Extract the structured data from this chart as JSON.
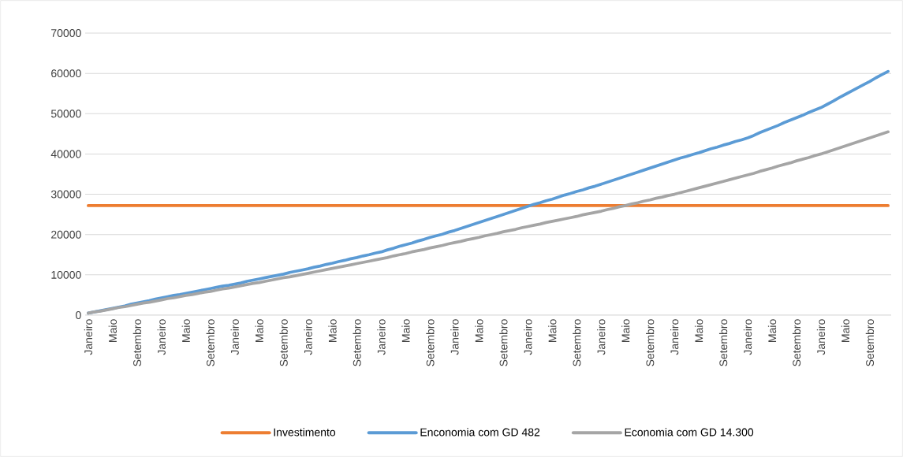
{
  "chart_data": {
    "type": "line",
    "categories": [
      "Janeiro",
      null,
      null,
      null,
      "Maio",
      null,
      null,
      null,
      "Setembro",
      null,
      null,
      null,
      "Janeiro",
      null,
      null,
      null,
      "Maio",
      null,
      null,
      null,
      "Setembro",
      null,
      null,
      null,
      "Janeiro",
      null,
      null,
      null,
      "Maio",
      null,
      null,
      null,
      "Setembro",
      null,
      null,
      null,
      "Janeiro",
      null,
      null,
      null,
      "Maio",
      null,
      null,
      null,
      "Setembro",
      null,
      null,
      null,
      "Janeiro",
      null,
      null,
      null,
      "Maio",
      null,
      null,
      null,
      "Setembro",
      null,
      null,
      null,
      "Janeiro",
      null,
      null,
      null,
      "Maio",
      null,
      null,
      null,
      "Setembro",
      null,
      null,
      null,
      "Janeiro",
      null,
      null,
      null,
      "Maio",
      null,
      null,
      null,
      "Setembro",
      null,
      null,
      null,
      "Janeiro",
      null,
      null,
      null,
      "Maio",
      null,
      null,
      null,
      "Setembro",
      null,
      null,
      null,
      "Janeiro",
      null,
      null,
      null,
      "Maio",
      null,
      null,
      null,
      "Setembro",
      null,
      null,
      null,
      "Janeiro",
      null,
      null,
      null,
      "Maio",
      null,
      null,
      null,
      "Setembro",
      null,
      null,
      null,
      "Janeiro",
      null,
      null,
      null,
      "Maio",
      null,
      null,
      null,
      "Setembro",
      null,
      null,
      null
    ],
    "series": [
      {
        "name": "Investimento",
        "color": "#ed7d31",
        "values": [
          27200,
          27200,
          27200,
          27200,
          27200,
          27200,
          27200,
          27200,
          27200,
          27200,
          27200,
          27200,
          27200,
          27200,
          27200,
          27200,
          27200,
          27200,
          27200,
          27200,
          27200,
          27200,
          27200,
          27200,
          27200,
          27200,
          27200,
          27200,
          27200,
          27200,
          27200,
          27200,
          27200,
          27200,
          27200,
          27200,
          27200,
          27200,
          27200,
          27200,
          27200,
          27200,
          27200,
          27200,
          27200,
          27200,
          27200,
          27200,
          27200,
          27200,
          27200,
          27200,
          27200,
          27200,
          27200,
          27200,
          27200,
          27200,
          27200,
          27200,
          27200,
          27200,
          27200,
          27200,
          27200,
          27200,
          27200,
          27200,
          27200,
          27200,
          27200,
          27200,
          27200,
          27200,
          27200,
          27200,
          27200,
          27200,
          27200,
          27200,
          27200,
          27200,
          27200,
          27200,
          27200,
          27200,
          27200,
          27200,
          27200,
          27200,
          27200,
          27200,
          27200,
          27200,
          27200,
          27200,
          27200,
          27200,
          27200,
          27200,
          27200,
          27200,
          27200,
          27200,
          27200,
          27200,
          27200,
          27200,
          27200,
          27200,
          27200,
          27200,
          27200,
          27200,
          27200,
          27200,
          27200,
          27200,
          27200,
          27200,
          27200,
          27200,
          27200,
          27200,
          27200,
          27200,
          27200,
          27200,
          27200,
          27200,
          27200,
          27200
        ]
      },
      {
        "name": "Enconomia com GD 482",
        "color": "#5b9bd5",
        "values": [
          500,
          800,
          1100,
          1400,
          1700,
          2000,
          2300,
          2700,
          3000,
          3300,
          3600,
          4000,
          4300,
          4600,
          4900,
          5100,
          5400,
          5700,
          6000,
          6300,
          6600,
          6900,
          7200,
          7400,
          7700,
          8000,
          8400,
          8700,
          9000,
          9300,
          9600,
          9900,
          10200,
          10600,
          10900,
          11200,
          11500,
          11900,
          12200,
          12600,
          12900,
          13300,
          13600,
          14000,
          14300,
          14700,
          15000,
          15400,
          15700,
          16200,
          16600,
          17100,
          17500,
          17900,
          18400,
          18800,
          19300,
          19700,
          20100,
          20600,
          21000,
          21500,
          22000,
          22500,
          23000,
          23500,
          24000,
          24500,
          25000,
          25500,
          26000,
          26500,
          27000,
          27500,
          27900,
          28400,
          28800,
          29300,
          29800,
          30200,
          30700,
          31100,
          31600,
          32000,
          32500,
          33000,
          33500,
          34000,
          34500,
          35000,
          35500,
          36000,
          36500,
          37000,
          37500,
          38000,
          38500,
          39000,
          39400,
          39900,
          40300,
          40800,
          41300,
          41700,
          42200,
          42600,
          43100,
          43500,
          44000,
          44600,
          45300,
          45900,
          46500,
          47100,
          47800,
          48400,
          49000,
          49600,
          50300,
          50900,
          51500,
          52300,
          53100,
          54000,
          54800,
          55600,
          56400,
          57200,
          58000,
          58900,
          59700,
          60500
        ]
      },
      {
        "name": "Economia com GD 14.300",
        "color": "#a5a5a5",
        "values": [
          500,
          800,
          1000,
          1300,
          1600,
          1900,
          2100,
          2400,
          2700,
          3000,
          3200,
          3500,
          3800,
          4100,
          4300,
          4600,
          4900,
          5100,
          5400,
          5700,
          5900,
          6200,
          6500,
          6700,
          7000,
          7300,
          7600,
          7900,
          8100,
          8400,
          8700,
          9000,
          9300,
          9500,
          9800,
          10100,
          10400,
          10700,
          11000,
          11300,
          11600,
          11900,
          12200,
          12500,
          12800,
          13100,
          13400,
          13700,
          14000,
          14300,
          14700,
          15000,
          15300,
          15700,
          16000,
          16300,
          16700,
          17000,
          17300,
          17700,
          18000,
          18300,
          18700,
          19000,
          19300,
          19700,
          20000,
          20300,
          20700,
          21000,
          21300,
          21700,
          22000,
          22300,
          22600,
          23000,
          23300,
          23600,
          23900,
          24200,
          24500,
          24900,
          25200,
          25500,
          25800,
          26200,
          26500,
          26900,
          27200,
          27600,
          27900,
          28300,
          28600,
          29000,
          29300,
          29700,
          30000,
          30400,
          30800,
          31200,
          31600,
          32000,
          32400,
          32800,
          33200,
          33600,
          34000,
          34400,
          34800,
          35200,
          35700,
          36100,
          36500,
          37000,
          37400,
          37800,
          38300,
          38700,
          39100,
          39600,
          40000,
          40500,
          41000,
          41500,
          42000,
          42500,
          43000,
          43500,
          44000,
          44500,
          45000,
          45500
        ]
      }
    ],
    "ylim": [
      0,
      70000
    ],
    "yticks": [
      0,
      10000,
      20000,
      30000,
      40000,
      50000,
      60000,
      70000
    ],
    "grid": "y",
    "legend": "bottom"
  }
}
